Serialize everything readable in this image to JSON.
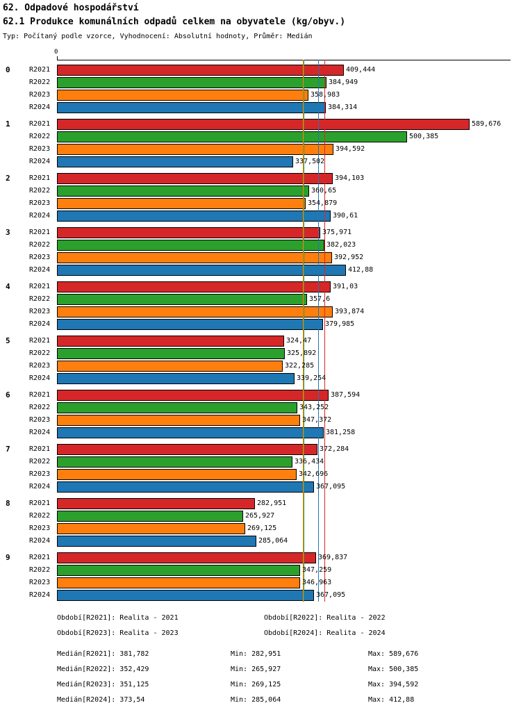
{
  "header": {
    "title_line1": "62. Odpadové hospodářství",
    "title_line2": "62.1 Produkce komunálních odpadů celkem na obyvatele (kg/obyv.)",
    "subtitle": "Typ: Počítaný podle vzorce, Vyhodnocení: Absolutní hodnoty, Průměr: Medián"
  },
  "chart_data": {
    "type": "bar",
    "orientation": "horizontal",
    "title": "62.1 Produkce komunálních odpadů celkem na obyvatele (kg/obyv.)",
    "xlabel": "",
    "ylabel": "",
    "xlim": [
      0,
      648
    ],
    "axis_zero_label": "0",
    "grid": false,
    "legend_position": "bottom",
    "series_names": [
      "R2021",
      "R2022",
      "R2023",
      "R2024"
    ],
    "series_colors": [
      "#d62728",
      "#2ca02c",
      "#ff7f0e",
      "#1f77b4"
    ],
    "groups": [
      {
        "label": "0",
        "values": [
          409.444,
          384.949,
          358.983,
          384.314
        ],
        "value_labels": [
          "409,444",
          "384,949",
          "358,983",
          "384,314"
        ]
      },
      {
        "label": "1",
        "values": [
          589.676,
          500.385,
          394.592,
          337.502
        ],
        "value_labels": [
          "589,676",
          "500,385",
          "394,592",
          "337,502"
        ]
      },
      {
        "label": "2",
        "values": [
          394.103,
          360.65,
          354.879,
          390.61
        ],
        "value_labels": [
          "394,103",
          "360,65",
          "354,879",
          "390,61"
        ]
      },
      {
        "label": "3",
        "values": [
          375.971,
          382.023,
          392.952,
          412.88
        ],
        "value_labels": [
          "375,971",
          "382,023",
          "392,952",
          "412,88"
        ]
      },
      {
        "label": "4",
        "values": [
          391.03,
          357.6,
          393.874,
          379.985
        ],
        "value_labels": [
          "391,03",
          "357,6",
          "393,874",
          "379,985"
        ]
      },
      {
        "label": "5",
        "values": [
          324.47,
          325.892,
          322.285,
          339.254
        ],
        "value_labels": [
          "324,47",
          "325,892",
          "322,285",
          "339,254"
        ]
      },
      {
        "label": "6",
        "values": [
          387.594,
          343.252,
          347.372,
          381.258
        ],
        "value_labels": [
          "387,594",
          "343,252",
          "347,372",
          "381,258"
        ]
      },
      {
        "label": "7",
        "values": [
          372.284,
          336.434,
          342.696,
          367.095
        ],
        "value_labels": [
          "372,284",
          "336,434",
          "342,696",
          "367,095"
        ]
      },
      {
        "label": "8",
        "values": [
          282.951,
          265.927,
          269.125,
          285.064
        ],
        "value_labels": [
          "282,951",
          "265,927",
          "269,125",
          "285,064"
        ]
      },
      {
        "label": "9",
        "values": [
          369.837,
          347.259,
          346.963,
          367.095
        ],
        "value_labels": [
          "369,837",
          "347,259",
          "346,963",
          "367,095"
        ]
      }
    ],
    "median_lines": [
      {
        "series": "R2021",
        "value": 381.782,
        "color": "#d62728"
      },
      {
        "series": "R2022",
        "value": 352.429,
        "color": "#2ca02c"
      },
      {
        "series": "R2023",
        "value": 351.125,
        "color": "#ff7f0e"
      },
      {
        "series": "R2024",
        "value": 373.54,
        "color": "#1f77b4"
      }
    ]
  },
  "legend": {
    "items": [
      {
        "label": "Období[R2021]: Realita - 2021"
      },
      {
        "label": "Období[R2022]: Realita - 2022"
      },
      {
        "label": "Období[R2023]: Realita - 2023"
      },
      {
        "label": "Období[R2024]: Realita - 2024"
      }
    ]
  },
  "stats": {
    "rows": [
      {
        "median": "Medián[R2021]: 381,782",
        "min": "Min: 282,951",
        "max": "Max: 589,676"
      },
      {
        "median": "Medián[R2022]: 352,429",
        "min": "Min: 265,927",
        "max": "Max: 500,385"
      },
      {
        "median": "Medián[R2023]: 351,125",
        "min": "Min: 269,125",
        "max": "Max: 394,592"
      },
      {
        "median": "Medián[R2024]: 373,54",
        "min": "Min: 285,064",
        "max": "Max: 412,88"
      }
    ]
  }
}
